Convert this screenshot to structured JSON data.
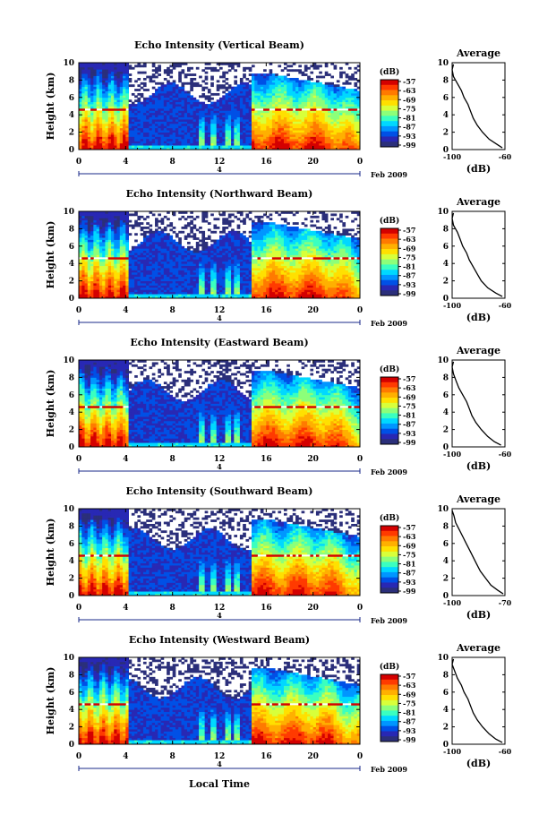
{
  "figure": {
    "xlabel": "Local Time",
    "colorbar_unit": "(dB)",
    "colorbar_ticks": [
      "-57",
      "-63",
      "-69",
      "-75",
      "-81",
      "-87",
      "-93",
      "-99"
    ],
    "colormap": [
      "#d40000",
      "#ff3a00",
      "#ff7a00",
      "#ffb000",
      "#ffe000",
      "#d8ff3a",
      "#8cff7a",
      "#3affc0",
      "#00d8ff",
      "#0096ff",
      "#0050e6",
      "#2828b4",
      "#2b2f7a"
    ],
    "date_axis": {
      "label": "4",
      "suffix": "Feb 2009"
    }
  },
  "chart_data": [
    {
      "type": "heatmap",
      "title": "Echo Intensity (Vertical Beam)",
      "ylabel": "Height (km)",
      "x_range": [
        0,
        24
      ],
      "x_ticks": [
        "0",
        "4",
        "8",
        "12",
        "16",
        "20",
        "0"
      ],
      "y_range": [
        0,
        10
      ],
      "y_ticks": [
        "0",
        "2",
        "4",
        "6",
        "8",
        "10"
      ],
      "colorbar": {
        "unit": "(dB)",
        "range": [
          -99,
          -57
        ]
      },
      "inset": {
        "type": "line",
        "title": "Average",
        "xlabel": "(dB)",
        "x_range": [
          -100,
          -60
        ],
        "x_ticks": [
          "-100",
          "-60"
        ],
        "y_ticks": [
          "0",
          "2",
          "4",
          "6",
          "8",
          "10"
        ],
        "x": [
          -62,
          -66,
          -72,
          -77,
          -81,
          -84,
          -86,
          -88,
          -91,
          -93,
          -96,
          -99,
          -100,
          -99
        ],
        "y": [
          0.2,
          0.6,
          1.2,
          2.0,
          2.8,
          3.6,
          4.4,
          5.2,
          6.0,
          6.8,
          7.6,
          8.4,
          9.2,
          9.8
        ]
      }
    },
    {
      "type": "heatmap",
      "title": "Echo Intensity (Northward Beam)",
      "ylabel": "Height (km)",
      "x_range": [
        0,
        24
      ],
      "x_ticks": [
        "0",
        "4",
        "8",
        "12",
        "16",
        "20",
        "0"
      ],
      "y_range": [
        0,
        10
      ],
      "y_ticks": [
        "0",
        "2",
        "4",
        "6",
        "8",
        "10"
      ],
      "colorbar": {
        "unit": "(dB)",
        "range": [
          -99,
          -57
        ]
      },
      "inset": {
        "type": "line",
        "title": "Average",
        "xlabel": "(dB)",
        "x_range": [
          -100,
          -60
        ],
        "x_ticks": [
          "-100",
          "-60"
        ],
        "y_ticks": [
          "0",
          "2",
          "4",
          "6",
          "8",
          "10"
        ],
        "x": [
          -62,
          -67,
          -73,
          -78,
          -81,
          -84,
          -87,
          -89,
          -92,
          -94,
          -96,
          -99,
          -100,
          -99
        ],
        "y": [
          0.2,
          0.6,
          1.2,
          2.0,
          2.8,
          3.6,
          4.4,
          5.2,
          6.0,
          6.8,
          7.6,
          8.4,
          9.2,
          9.8
        ]
      }
    },
    {
      "type": "heatmap",
      "title": "Echo Intensity (Eastward Beam)",
      "ylabel": "Height (km)",
      "x_range": [
        0,
        24
      ],
      "x_ticks": [
        "0",
        "4",
        "8",
        "12",
        "16",
        "20",
        "0"
      ],
      "y_range": [
        0,
        10
      ],
      "y_ticks": [
        "0",
        "2",
        "4",
        "6",
        "8",
        "10"
      ],
      "colorbar": {
        "unit": "(dB)",
        "range": [
          -99,
          -57
        ]
      },
      "inset": {
        "type": "line",
        "title": "Average",
        "xlabel": "(dB)",
        "x_range": [
          -100,
          -60
        ],
        "x_ticks": [
          "-100",
          "-60"
        ],
        "y_ticks": [
          "0",
          "2",
          "4",
          "6",
          "8",
          "10"
        ],
        "x": [
          -63,
          -68,
          -73,
          -78,
          -82,
          -85,
          -87,
          -89,
          -92,
          -95,
          -97,
          -99,
          -100,
          -99
        ],
        "y": [
          0.2,
          0.6,
          1.2,
          2.0,
          2.8,
          3.6,
          4.4,
          5.2,
          6.0,
          6.8,
          7.6,
          8.4,
          9.2,
          9.8
        ]
      }
    },
    {
      "type": "heatmap",
      "title": "Echo Intensity (Southward Beam)",
      "ylabel": "Height (km)",
      "x_range": [
        0,
        24
      ],
      "x_ticks": [
        "0",
        "4",
        "8",
        "12",
        "16",
        "20",
        "0"
      ],
      "y_range": [
        0,
        10
      ],
      "y_ticks": [
        "0",
        "2",
        "4",
        "6",
        "8",
        "10"
      ],
      "colorbar": {
        "unit": "(dB)",
        "range": [
          -99,
          -57
        ]
      },
      "inset": {
        "type": "line",
        "title": "Average",
        "xlabel": "(dB)",
        "x_range": [
          -100,
          -70
        ],
        "x_ticks": [
          "-100",
          "-70"
        ],
        "y_ticks": [
          "0",
          "2",
          "4",
          "6",
          "8",
          "10"
        ],
        "x": [
          -71,
          -74,
          -78,
          -81,
          -84,
          -86,
          -88,
          -90,
          -92,
          -94,
          -96,
          -98,
          -99,
          -100
        ],
        "y": [
          0.2,
          0.6,
          1.2,
          2.0,
          2.8,
          3.6,
          4.4,
          5.2,
          6.0,
          6.8,
          7.6,
          8.4,
          9.2,
          9.8
        ]
      }
    },
    {
      "type": "heatmap",
      "title": "Echo Intensity (Westward Beam)",
      "ylabel": "Height (km)",
      "x_range": [
        0,
        24
      ],
      "x_ticks": [
        "0",
        "4",
        "8",
        "12",
        "16",
        "20",
        "0"
      ],
      "y_range": [
        0,
        10
      ],
      "y_ticks": [
        "0",
        "2",
        "4",
        "6",
        "8",
        "10"
      ],
      "colorbar": {
        "unit": "(dB)",
        "range": [
          -99,
          -57
        ]
      },
      "inset": {
        "type": "line",
        "title": "Average",
        "xlabel": "(dB)",
        "x_range": [
          -100,
          -60
        ],
        "x_ticks": [
          "-100",
          "-60"
        ],
        "y_ticks": [
          "0",
          "2",
          "4",
          "6",
          "8",
          "10"
        ],
        "x": [
          -62,
          -67,
          -72,
          -77,
          -81,
          -84,
          -86,
          -88,
          -91,
          -93,
          -96,
          -98,
          -100,
          -99
        ],
        "y": [
          0.2,
          0.6,
          1.2,
          2.0,
          2.8,
          3.6,
          4.4,
          5.2,
          6.0,
          6.8,
          7.6,
          8.4,
          9.2,
          9.8
        ]
      }
    }
  ]
}
